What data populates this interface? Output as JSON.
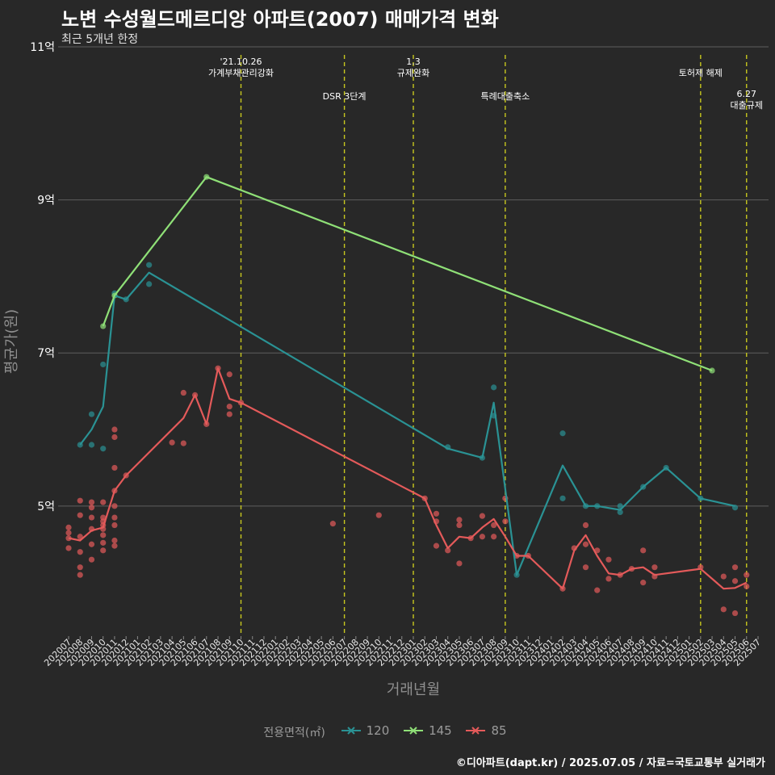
{
  "title": "노변 수성월드메르디앙 아파트(2007) 매매가격 변화",
  "subtitle": "최근 5개년 한정",
  "caption": "©디아파트(dapt.kr) / 2025.07.05 / 자료=국토교통부 실거래가",
  "chart_data": {
    "type": "line",
    "xlabel": "거래년월",
    "ylabel": "평균가(원)",
    "ylim": [
      3.3,
      11.0
    ],
    "y_ticks": [
      {
        "value": 5,
        "label": "5억"
      },
      {
        "value": 7,
        "label": "7억"
      },
      {
        "value": 9,
        "label": "9억"
      },
      {
        "value": 11,
        "label": "11억"
      }
    ],
    "x_ticks": [
      "202007",
      "202008",
      "202009",
      "202010",
      "202011",
      "202012",
      "202101",
      "202102",
      "202103",
      "202104",
      "202105",
      "202106",
      "202107",
      "202108",
      "202109",
      "202110",
      "202111",
      "202112",
      "202201",
      "202202",
      "202203",
      "202204",
      "202205",
      "202206",
      "202207",
      "202208",
      "202209",
      "202210",
      "202211",
      "202212",
      "202301",
      "202302",
      "202303",
      "202304",
      "202305",
      "202306",
      "202307",
      "202308",
      "202309",
      "202310",
      "202311",
      "202312",
      "202401",
      "202402",
      "202403",
      "202404",
      "202405",
      "202406",
      "202407",
      "202408",
      "202409",
      "202410",
      "202411",
      "202412",
      "202501",
      "202502",
      "202503",
      "202504",
      "202505",
      "202506",
      "202507"
    ],
    "events": [
      {
        "x": "202110",
        "lines": [
          "'21.10.26",
          "가계부채관리강화"
        ],
        "level": 0
      },
      {
        "x": "202207",
        "lines": [
          "DSR 3단계"
        ],
        "level": 1
      },
      {
        "x": "202301",
        "lines": [
          "1.3",
          "규제완화"
        ],
        "level": 0
      },
      {
        "x": "202309",
        "lines": [
          "특례대출축소"
        ],
        "level": 1
      },
      {
        "x": "202502",
        "lines": [
          "토허제 해제"
        ],
        "level": 0
      },
      {
        "x": "202506",
        "lines": [
          "6.27",
          "대출규제"
        ],
        "level": 2
      }
    ],
    "legend_title": "전용면적(㎡)",
    "series": [
      {
        "name": "120",
        "color": "#2a9294",
        "line": [
          [
            "202008",
            5.8
          ],
          [
            "202009",
            6.0
          ],
          [
            "202010",
            6.3
          ],
          [
            "202011",
            7.75
          ],
          [
            "202012",
            7.7
          ],
          [
            "202102",
            8.05
          ],
          [
            "202304",
            5.75
          ],
          [
            "202307",
            5.63
          ],
          [
            "202308",
            6.35
          ],
          [
            "202310",
            4.1
          ],
          [
            "202402",
            5.53
          ],
          [
            "202404",
            5.0
          ],
          [
            "202405",
            5.0
          ],
          [
            "202407",
            4.95
          ],
          [
            "202409",
            5.25
          ],
          [
            "202411",
            5.5
          ],
          [
            "202502",
            5.1
          ],
          [
            "202505",
            5.0
          ]
        ],
        "points": [
          [
            "202008",
            5.8
          ],
          [
            "202009",
            6.2
          ],
          [
            "202009",
            5.8
          ],
          [
            "202010",
            6.85
          ],
          [
            "202010",
            5.75
          ],
          [
            "202011",
            7.78
          ],
          [
            "202012",
            7.7
          ],
          [
            "202102",
            8.15
          ],
          [
            "202102",
            7.9
          ],
          [
            "202304",
            5.77
          ],
          [
            "202307",
            5.63
          ],
          [
            "202308",
            6.55
          ],
          [
            "202308",
            6.18
          ],
          [
            "202310",
            4.1
          ],
          [
            "202402",
            5.95
          ],
          [
            "202402",
            5.1
          ],
          [
            "202404",
            5.0
          ],
          [
            "202405",
            5.0
          ],
          [
            "202407",
            4.92
          ],
          [
            "202407",
            5.0
          ],
          [
            "202409",
            5.25
          ],
          [
            "202411",
            5.5
          ],
          [
            "202502",
            5.1
          ],
          [
            "202505",
            4.98
          ]
        ]
      },
      {
        "name": "145",
        "color": "#8fe077",
        "line": [
          [
            "202010",
            7.35
          ],
          [
            "202011",
            7.75
          ],
          [
            "202107",
            9.3
          ],
          [
            "202503",
            6.77
          ]
        ],
        "points": [
          [
            "202010",
            7.35
          ],
          [
            "202011",
            7.75
          ],
          [
            "202107",
            9.3
          ],
          [
            "202503",
            6.77
          ]
        ]
      },
      {
        "name": "85",
        "color": "#e45a5a",
        "line": [
          [
            "202007",
            4.58
          ],
          [
            "202008",
            4.55
          ],
          [
            "202009",
            4.68
          ],
          [
            "202010",
            4.72
          ],
          [
            "202011",
            5.2
          ],
          [
            "202012",
            5.4
          ],
          [
            "202105",
            6.15
          ],
          [
            "202106",
            6.45
          ],
          [
            "202107",
            6.07
          ],
          [
            "202108",
            6.8
          ],
          [
            "202109",
            6.4
          ],
          [
            "202110",
            6.35
          ],
          [
            "202302",
            5.1
          ],
          [
            "202303",
            4.75
          ],
          [
            "202304",
            4.45
          ],
          [
            "202305",
            4.6
          ],
          [
            "202306",
            4.58
          ],
          [
            "202307",
            4.72
          ],
          [
            "202308",
            4.83
          ],
          [
            "202309",
            4.6
          ],
          [
            "202310",
            4.35
          ],
          [
            "202311",
            4.35
          ],
          [
            "202402",
            3.92
          ],
          [
            "202403",
            4.42
          ],
          [
            "202404",
            4.62
          ],
          [
            "202405",
            4.35
          ],
          [
            "202406",
            4.12
          ],
          [
            "202407",
            4.1
          ],
          [
            "202408",
            4.18
          ],
          [
            "202409",
            4.2
          ],
          [
            "202410",
            4.1
          ],
          [
            "202502",
            4.18
          ],
          [
            "202504",
            3.92
          ],
          [
            "202505",
            3.93
          ],
          [
            "202506",
            4.0
          ]
        ],
        "points": [
          [
            "202007",
            4.72
          ],
          [
            "202007",
            4.65
          ],
          [
            "202007",
            4.58
          ],
          [
            "202007",
            4.45
          ],
          [
            "202008",
            5.07
          ],
          [
            "202008",
            4.88
          ],
          [
            "202008",
            4.6
          ],
          [
            "202008",
            4.4
          ],
          [
            "202008",
            4.2
          ],
          [
            "202008",
            4.1
          ],
          [
            "202009",
            5.05
          ],
          [
            "202009",
            4.98
          ],
          [
            "202009",
            4.85
          ],
          [
            "202009",
            4.7
          ],
          [
            "202009",
            4.5
          ],
          [
            "202009",
            4.3
          ],
          [
            "202010",
            5.05
          ],
          [
            "202010",
            4.85
          ],
          [
            "202010",
            4.8
          ],
          [
            "202010",
            4.75
          ],
          [
            "202010",
            4.7
          ],
          [
            "202010",
            4.62
          ],
          [
            "202010",
            4.52
          ],
          [
            "202010",
            4.42
          ],
          [
            "202011",
            6.0
          ],
          [
            "202011",
            5.9
          ],
          [
            "202011",
            5.5
          ],
          [
            "202011",
            5.2
          ],
          [
            "202011",
            5.0
          ],
          [
            "202011",
            4.85
          ],
          [
            "202011",
            4.75
          ],
          [
            "202011",
            4.55
          ],
          [
            "202011",
            4.48
          ],
          [
            "202012",
            5.4
          ],
          [
            "202104",
            5.83
          ],
          [
            "202105",
            6.48
          ],
          [
            "202105",
            5.82
          ],
          [
            "202106",
            6.45
          ],
          [
            "202107",
            6.07
          ],
          [
            "202108",
            6.8
          ],
          [
            "202109",
            6.72
          ],
          [
            "202109",
            6.3
          ],
          [
            "202109",
            6.2
          ],
          [
            "202110",
            6.35
          ],
          [
            "202206",
            4.77
          ],
          [
            "202210",
            4.88
          ],
          [
            "202302",
            5.1
          ],
          [
            "202303",
            4.9
          ],
          [
            "202303",
            4.8
          ],
          [
            "202303",
            4.48
          ],
          [
            "202304",
            4.42
          ],
          [
            "202305",
            4.82
          ],
          [
            "202305",
            4.75
          ],
          [
            "202305",
            4.25
          ],
          [
            "202306",
            4.58
          ],
          [
            "202307",
            4.87
          ],
          [
            "202307",
            4.6
          ],
          [
            "202308",
            4.75
          ],
          [
            "202308",
            4.6
          ],
          [
            "202309",
            5.1
          ],
          [
            "202309",
            4.8
          ],
          [
            "202310",
            4.35
          ],
          [
            "202311",
            4.35
          ],
          [
            "202402",
            3.92
          ],
          [
            "202403",
            4.45
          ],
          [
            "202404",
            4.75
          ],
          [
            "202404",
            4.5
          ],
          [
            "202404",
            4.2
          ],
          [
            "202405",
            4.42
          ],
          [
            "202405",
            3.9
          ],
          [
            "202406",
            4.3
          ],
          [
            "202406",
            4.05
          ],
          [
            "202407",
            4.1
          ],
          [
            "202408",
            4.18
          ],
          [
            "202409",
            4.42
          ],
          [
            "202409",
            4.0
          ],
          [
            "202410",
            4.2
          ],
          [
            "202410",
            4.08
          ],
          [
            "202502",
            4.2
          ],
          [
            "202504",
            4.08
          ],
          [
            "202504",
            3.65
          ],
          [
            "202505",
            4.2
          ],
          [
            "202505",
            4.02
          ],
          [
            "202505",
            3.6
          ],
          [
            "202506",
            4.1
          ],
          [
            "202506",
            3.95
          ]
        ]
      }
    ]
  }
}
